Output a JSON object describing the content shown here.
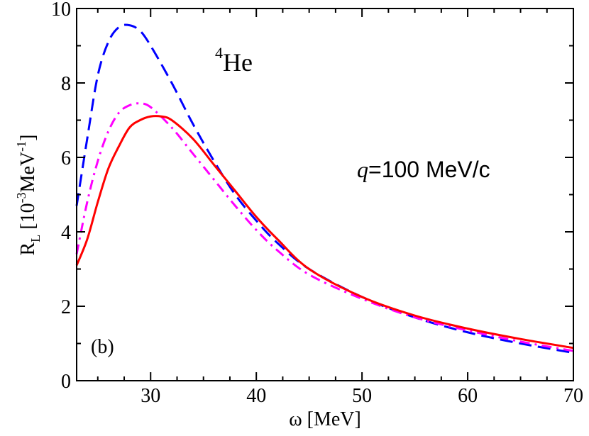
{
  "chart_data": {
    "type": "line",
    "xlabel": "ω [MeV]",
    "ylabel": {
      "main": "R",
      "sub": "L",
      "unit_pre": " [10",
      "unit_exp1": "-3",
      "unit_mid": "MeV",
      "unit_exp2": "-1",
      "unit_post": "]"
    },
    "xlim": [
      23,
      70
    ],
    "ylim": [
      0,
      10
    ],
    "xticks": [
      30,
      40,
      50,
      60,
      70
    ],
    "yticks": [
      0,
      2,
      4,
      6,
      8,
      10
    ],
    "grid": false,
    "annotations": {
      "nucleus_sup": "4",
      "nucleus": "He",
      "momentum_var": "q",
      "momentum_val": "=100 MeV/c",
      "panel": "(b)"
    },
    "series": [
      {
        "style": "dashed",
        "color": "#0000ff",
        "x": [
          23,
          24,
          25,
          26,
          27,
          28,
          29,
          30,
          32,
          34,
          36,
          38,
          40,
          42,
          45,
          50,
          55,
          60,
          65,
          70
        ],
        "y": [
          4.7,
          6.5,
          8.2,
          9.1,
          9.5,
          9.55,
          9.4,
          9.0,
          8.0,
          6.9,
          5.9,
          5.0,
          4.3,
          3.7,
          3.0,
          2.25,
          1.7,
          1.3,
          1.0,
          0.75
        ]
      },
      {
        "style": "dash-dot",
        "color": "#ff00ff",
        "x": [
          23,
          24,
          25,
          26,
          27,
          28,
          29,
          30,
          32,
          34,
          36,
          38,
          40,
          42,
          45,
          50,
          55,
          60,
          65,
          70
        ],
        "y": [
          3.4,
          4.8,
          5.9,
          6.7,
          7.2,
          7.4,
          7.45,
          7.35,
          6.8,
          6.1,
          5.4,
          4.7,
          4.05,
          3.5,
          2.85,
          2.2,
          1.7,
          1.35,
          1.05,
          0.8
        ]
      },
      {
        "style": "solid",
        "color": "#ff0000",
        "x": [
          23,
          24,
          25,
          26,
          27,
          28,
          29,
          30,
          31,
          32,
          34,
          36,
          38,
          40,
          42,
          45,
          50,
          55,
          60,
          65,
          70
        ],
        "y": [
          3.1,
          3.8,
          4.8,
          5.7,
          6.3,
          6.8,
          7.0,
          7.1,
          7.1,
          7.0,
          6.5,
          5.8,
          5.1,
          4.4,
          3.8,
          3.0,
          2.25,
          1.75,
          1.4,
          1.12,
          0.88
        ]
      }
    ]
  }
}
